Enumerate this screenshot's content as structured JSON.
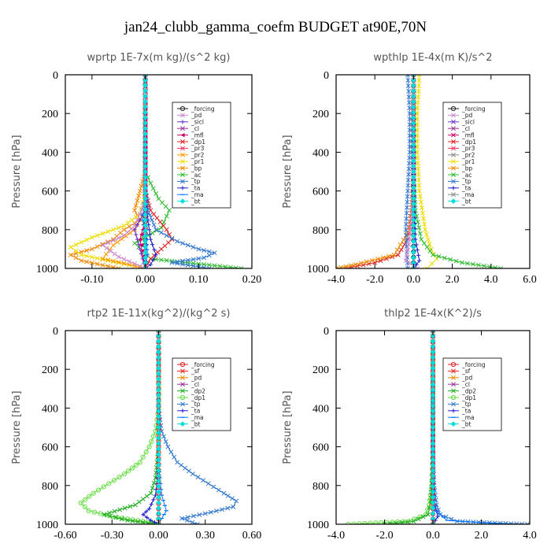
{
  "suptitle": "jan24_clubb_gamma_coefm  BUDGET at90E,70N",
  "chart_data": [
    {
      "type": "line",
      "title": "wprtp   1E-7x(m kg)/(s^2 kg)",
      "ylabel": "Pressure [hPa]",
      "xlim": [
        -0.15,
        0.2
      ],
      "ylim": [
        1000,
        0
      ],
      "xticks": [
        "-0.10",
        "0.00",
        "0.10",
        "0.20"
      ],
      "xtick_values": [
        -0.1,
        0.0,
        0.1,
        0.2
      ],
      "yticks": [
        "0",
        "200",
        "400",
        "600",
        "800",
        "1000"
      ],
      "ytick_values": [
        0,
        200,
        400,
        600,
        800,
        1000
      ],
      "legend": [
        "_forcing",
        "_pd",
        "_sicl",
        "_cl",
        "_mfl",
        "_dp1",
        "_pr3",
        "_pr2",
        "_pr1",
        "_bp",
        "_ac",
        "_tp",
        "_ta",
        "_ma",
        "_bt"
      ],
      "series": [
        {
          "name": "_forcing",
          "color": "#222222",
          "marker": "o",
          "x": [
            0,
            0,
            0,
            0,
            0,
            0,
            0,
            0,
            0,
            0
          ],
          "y": [
            0,
            100,
            200,
            300,
            400,
            500,
            600,
            700,
            850,
            1000
          ]
        },
        {
          "name": "_ac",
          "color": "#33bb33",
          "marker": "x",
          "x": [
            0,
            0,
            0,
            0.01,
            0.025,
            0.045,
            0.03,
            -0.02,
            0.01,
            0.18
          ],
          "y": [
            0,
            400,
            500,
            560,
            640,
            700,
            790,
            870,
            950,
            1000
          ]
        },
        {
          "name": "_bp",
          "color": "#ee8800",
          "marker": "x",
          "x": [
            0,
            0,
            -0.01,
            -0.02,
            -0.01,
            -0.04,
            -0.06,
            -0.1,
            -0.14,
            -0.12,
            -0.05
          ],
          "y": [
            0,
            500,
            600,
            700,
            750,
            800,
            850,
            900,
            930,
            960,
            1000
          ]
        },
        {
          "name": "_pr1",
          "color": "#eedd00",
          "marker": "x",
          "x": [
            0,
            0,
            -0.01,
            -0.04,
            -0.1,
            -0.14,
            -0.12,
            -0.06,
            0
          ],
          "y": [
            0,
            600,
            720,
            780,
            840,
            890,
            930,
            965,
            1000
          ]
        },
        {
          "name": "_pr2",
          "color": "#ff9900",
          "marker": "x",
          "x": [
            0,
            0,
            -0.02,
            -0.06,
            -0.08,
            -0.03,
            0
          ],
          "y": [
            0,
            700,
            800,
            880,
            950,
            980,
            1000
          ]
        },
        {
          "name": "_dp1",
          "color": "#dd2222",
          "marker": "x",
          "x": [
            0,
            0,
            0.01,
            0.04,
            0.05,
            0.03,
            0.01,
            0
          ],
          "y": [
            0,
            600,
            700,
            800,
            850,
            900,
            950,
            1000
          ]
        },
        {
          "name": "_tp",
          "color": "#3377cc",
          "marker": "x",
          "x": [
            0,
            0,
            0.005,
            0.02,
            0.06,
            0.1,
            0.13,
            0.11,
            0.05,
            0.12
          ],
          "y": [
            0,
            600,
            700,
            800,
            860,
            900,
            920,
            945,
            970,
            1000
          ]
        },
        {
          "name": "_ta",
          "color": "#2222cc",
          "marker": "+",
          "x": [
            0,
            0,
            0.005,
            0.01,
            0.02,
            0.01,
            0
          ],
          "y": [
            0,
            600,
            750,
            850,
            930,
            980,
            1000
          ]
        },
        {
          "name": "_ma",
          "color": "#0077ff",
          "marker": "-",
          "x": [
            0,
            0,
            -0.005,
            0.002,
            0.004,
            0
          ],
          "y": [
            0,
            600,
            750,
            850,
            930,
            1000
          ]
        },
        {
          "name": "_pd",
          "color": "#cc88cc",
          "marker": "x",
          "x": [
            0,
            0,
            -0.01,
            -0.02,
            -0.04,
            -0.08,
            -0.05,
            0
          ],
          "y": [
            0,
            650,
            720,
            780,
            830,
            880,
            940,
            1000
          ]
        },
        {
          "name": "_sicl",
          "color": "#6633cc",
          "marker": "+",
          "x": [
            0,
            0,
            -0.02,
            -0.01,
            0
          ],
          "y": [
            0,
            700,
            800,
            900,
            1000
          ]
        },
        {
          "name": "_mfl",
          "color": "#cc0066",
          "marker": "<",
          "x": [
            0,
            0,
            -0.01,
            0
          ],
          "y": [
            0,
            750,
            850,
            1000
          ]
        },
        {
          "name": "_bt",
          "color": "#00dddd",
          "marker": "D",
          "x": [
            0,
            0,
            0
          ],
          "y": [
            0,
            500,
            1000
          ]
        }
      ]
    },
    {
      "type": "line",
      "title": "wpthlp   1E-4x(m K)/s^2",
      "ylabel": "Pressure [hPa]",
      "xlim": [
        -4.0,
        6.0
      ],
      "ylim": [
        1000,
        0
      ],
      "xticks": [
        "-4.0",
        "-2.0",
        "0.0",
        "2.0",
        "4.0",
        "6.0"
      ],
      "xtick_values": [
        -4,
        -2,
        0,
        2,
        4,
        6
      ],
      "yticks": [
        "0",
        "200",
        "400",
        "600",
        "800",
        "1000"
      ],
      "ytick_values": [
        0,
        200,
        400,
        600,
        800,
        1000
      ],
      "legend": [
        "_forcing",
        "_pd",
        "_sicl",
        "_cl",
        "_mfl",
        "_dp1",
        "_pr3",
        "_pr2",
        "_pr1",
        "_bp",
        "_ac",
        "_tp",
        "_ta",
        "_ma",
        "_bt"
      ],
      "series": [
        {
          "name": "_forcing",
          "color": "#222222",
          "marker": "o",
          "x": [
            0,
            0,
            0,
            0,
            0,
            0
          ],
          "y": [
            0,
            200,
            400,
            600,
            800,
            1000
          ]
        },
        {
          "name": "_pr1",
          "color": "#eedd00",
          "marker": "x",
          "x": [
            0.3,
            0.2,
            0.2,
            0.3,
            0.6,
            0.9,
            1.2,
            0.7
          ],
          "y": [
            0,
            200,
            400,
            600,
            800,
            900,
            950,
            1000
          ]
        },
        {
          "name": "_ac",
          "color": "#33bb33",
          "marker": "x",
          "x": [
            0,
            0,
            0.1,
            0.4,
            1.0,
            2.5,
            4.5
          ],
          "y": [
            0,
            500,
            700,
            850,
            930,
            970,
            1000
          ]
        },
        {
          "name": "_dp1",
          "color": "#dd2222",
          "marker": "x",
          "x": [
            0,
            0,
            -0.1,
            -0.3,
            -0.8,
            -2.0,
            -3.5
          ],
          "y": [
            0,
            500,
            700,
            850,
            930,
            970,
            1000
          ]
        },
        {
          "name": "_bp",
          "color": "#ee8800",
          "marker": "x",
          "x": [
            0,
            0,
            -0.2,
            -1.0,
            -3.0,
            -4.0
          ],
          "y": [
            0,
            600,
            800,
            930,
            980,
            1000
          ]
        },
        {
          "name": "_tp",
          "color": "#3377cc",
          "marker": "x",
          "x": [
            -0.3,
            -0.2,
            -0.2,
            -0.3,
            -0.4,
            -0.3
          ],
          "y": [
            0,
            200,
            400,
            600,
            800,
            1000
          ]
        },
        {
          "name": "_pd",
          "color": "#cc88cc",
          "marker": "x",
          "x": [
            0,
            0,
            -0.2,
            -0.4,
            0.2
          ],
          "y": [
            0,
            600,
            850,
            960,
            1000
          ]
        },
        {
          "name": "_ta",
          "color": "#2222cc",
          "marker": "+",
          "x": [
            0,
            0,
            0.1,
            0.3,
            0
          ],
          "y": [
            0,
            600,
            850,
            960,
            1000
          ]
        },
        {
          "name": "_bt",
          "color": "#00dddd",
          "marker": "D",
          "x": [
            0,
            0,
            0
          ],
          "y": [
            0,
            500,
            1000
          ]
        }
      ]
    },
    {
      "type": "line",
      "title": "rtp2   1E-11x(kg^2)/(kg^2 s)",
      "ylabel": "Pressure [hPa]",
      "xlim": [
        -0.6,
        0.6
      ],
      "ylim": [
        1000,
        0
      ],
      "xticks": [
        "-0.60",
        "-0.30",
        "0.00",
        "0.30",
        "0.60"
      ],
      "xtick_values": [
        -0.6,
        -0.3,
        0.0,
        0.3,
        0.6
      ],
      "yticks": [
        "0",
        "200",
        "400",
        "600",
        "800",
        "1000"
      ],
      "ytick_values": [
        0,
        200,
        400,
        600,
        800,
        1000
      ],
      "legend": [
        "_forcing",
        "_sf",
        "_pd",
        "_cl",
        "_dp2",
        "_dp1",
        "_tp",
        "_ta",
        "_ma",
        "_bt"
      ],
      "series": [
        {
          "name": "_dp1",
          "color": "#66dd44",
          "marker": "o",
          "x": [
            0,
            0,
            -0.02,
            -0.06,
            -0.12,
            -0.22,
            -0.32,
            -0.42,
            -0.5,
            -0.45,
            -0.3,
            -0.1,
            0
          ],
          "y": [
            0,
            400,
            520,
            600,
            680,
            740,
            790,
            840,
            890,
            930,
            960,
            985,
            1000
          ]
        },
        {
          "name": "_dp2",
          "color": "#22aa22",
          "marker": "x",
          "x": [
            0,
            0,
            -0.02,
            -0.05,
            -0.15,
            -0.35,
            -0.2,
            0
          ],
          "y": [
            0,
            600,
            760,
            840,
            900,
            950,
            980,
            1000
          ]
        },
        {
          "name": "_tp",
          "color": "#3377cc",
          "marker": "x",
          "x": [
            0,
            0,
            0.02,
            0.06,
            0.12,
            0.22,
            0.32,
            0.42,
            0.5,
            0.48,
            0.3,
            0.15,
            0.25
          ],
          "y": [
            0,
            400,
            520,
            600,
            680,
            740,
            790,
            840,
            880,
            910,
            945,
            970,
            1000
          ]
        },
        {
          "name": "_ta",
          "color": "#2222cc",
          "marker": "+",
          "x": [
            0,
            0,
            -0.02,
            -0.06,
            -0.1,
            -0.05,
            0
          ],
          "y": [
            0,
            700,
            850,
            920,
            950,
            980,
            1000
          ]
        },
        {
          "name": "_ma",
          "color": "#0077ff",
          "marker": "-",
          "x": [
            0,
            0,
            0.02,
            0.05,
            0.02,
            0
          ],
          "y": [
            0,
            700,
            850,
            930,
            970,
            1000
          ]
        },
        {
          "name": "_forcing",
          "color": "#dd2222",
          "marker": "o",
          "x": [
            0,
            0,
            0,
            0,
            0,
            0,
            0,
            0,
            0,
            0
          ],
          "y": [
            0,
            120,
            240,
            360,
            480,
            600,
            720,
            840,
            920,
            1000
          ]
        },
        {
          "name": "_bt",
          "color": "#00dddd",
          "marker": "D",
          "x": [
            0,
            0,
            0
          ],
          "y": [
            0,
            500,
            1000
          ]
        }
      ]
    },
    {
      "type": "line",
      "title": "thlp2   1E-4x(K^2)/s",
      "ylabel": "Pressure [hPa]",
      "xlim": [
        -4.0,
        4.0
      ],
      "ylim": [
        1000,
        0
      ],
      "xticks": [
        "-4.0",
        "-2.0",
        "0.0",
        "2.0",
        "4.0"
      ],
      "xtick_values": [
        -4,
        -2,
        0,
        2,
        4
      ],
      "yticks": [
        "0",
        "200",
        "400",
        "600",
        "800",
        "1000"
      ],
      "ytick_values": [
        0,
        200,
        400,
        600,
        800,
        1000
      ],
      "legend": [
        "_forcing",
        "_sf",
        "_pd",
        "_cl",
        "_dp2",
        "_dp1",
        "_tp",
        "_ta",
        "_ma",
        "_bt"
      ],
      "series": [
        {
          "name": "_dp1",
          "color": "#66dd44",
          "marker": "o",
          "x": [
            0,
            0,
            -0.05,
            -0.15,
            -0.3,
            -1.0,
            -3.5
          ],
          "y": [
            0,
            600,
            800,
            900,
            950,
            985,
            1000
          ]
        },
        {
          "name": "_dp2",
          "color": "#22aa22",
          "marker": "x",
          "x": [
            0,
            0,
            -0.1,
            -0.2,
            -0.8,
            -2.0
          ],
          "y": [
            0,
            700,
            880,
            950,
            985,
            1000
          ]
        },
        {
          "name": "_tp",
          "color": "#3377cc",
          "marker": "x",
          "x": [
            0,
            0,
            0.05,
            0.15,
            0.3,
            1.0,
            3.9
          ],
          "y": [
            0,
            600,
            800,
            900,
            950,
            985,
            1000
          ]
        },
        {
          "name": "_ta",
          "color": "#2222cc",
          "marker": "+",
          "x": [
            0,
            0,
            0.05,
            0.2,
            0
          ],
          "y": [
            0,
            700,
            880,
            960,
            1000
          ]
        },
        {
          "name": "_ma",
          "color": "#0077ff",
          "marker": "-",
          "x": [
            0,
            0,
            0.1,
            0.6,
            3.0
          ],
          "y": [
            0,
            800,
            930,
            980,
            1000
          ]
        },
        {
          "name": "_forcing",
          "color": "#dd2222",
          "marker": "o",
          "x": [
            0,
            0,
            0,
            0,
            0,
            0,
            0,
            0,
            0,
            0
          ],
          "y": [
            0,
            120,
            240,
            360,
            480,
            600,
            720,
            840,
            920,
            1000
          ]
        },
        {
          "name": "_bt",
          "color": "#00dddd",
          "marker": "D",
          "x": [
            0,
            0,
            0
          ],
          "y": [
            0,
            500,
            1000
          ]
        }
      ]
    }
  ]
}
